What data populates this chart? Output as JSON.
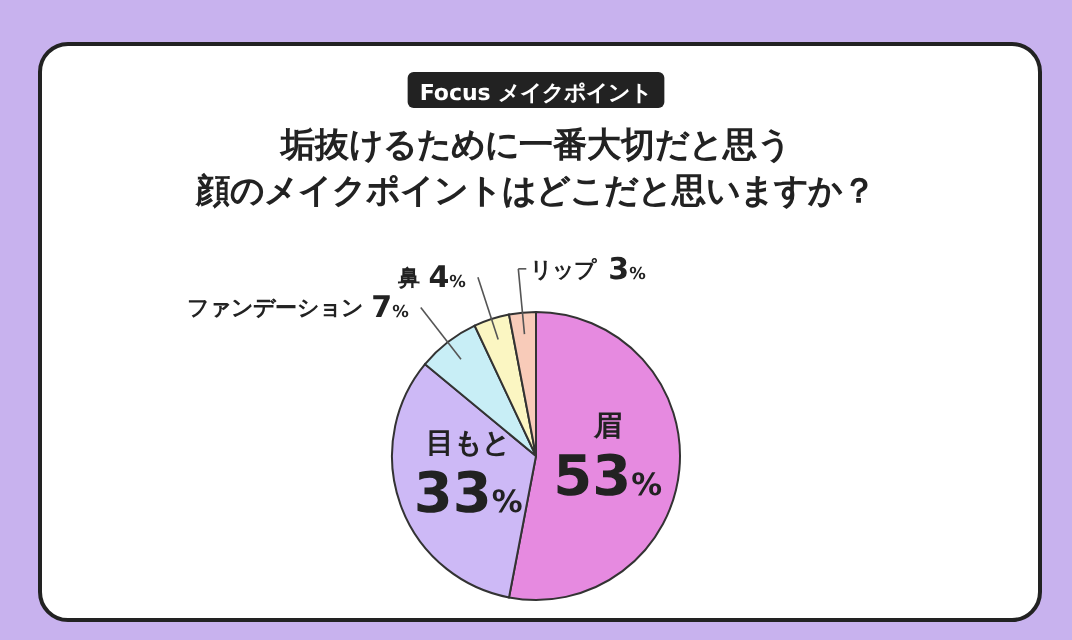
{
  "chart_data": {
    "type": "pie",
    "annotations": [
      "Focus メイクポイント"
    ],
    "title": "垢抜けるために一番大切だと思う",
    "subtitle": "顔のメイクポイントはどこだと思いますか？",
    "categories": [
      "眉",
      "目もと",
      "ファンデーション",
      "鼻",
      "リップ"
    ],
    "values": [
      53,
      33,
      7,
      4,
      3
    ],
    "value_labels": [
      "53%",
      "33%",
      "7%",
      "4%",
      "3%"
    ],
    "colors": [
      "#e68ae0",
      "#cdb9f6",
      "#c8eef6",
      "#fbf6c2",
      "#f8cbb9"
    ]
  }
}
